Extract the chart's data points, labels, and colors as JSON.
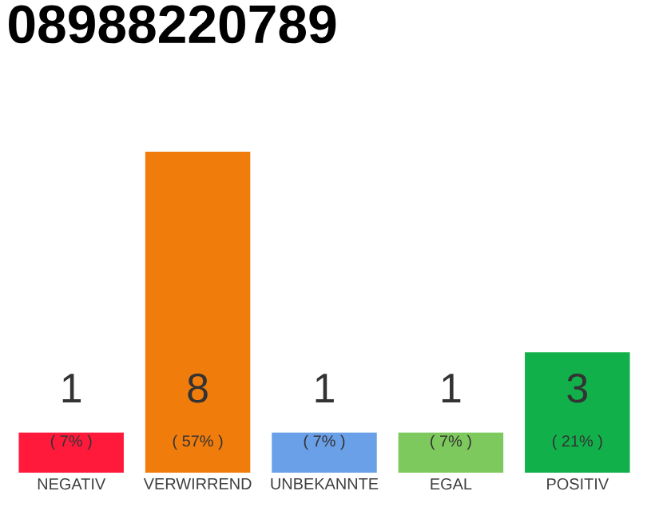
{
  "chart_data": {
    "type": "bar",
    "title": "08988220789",
    "categories": [
      "NEGATIV",
      "VERWIRREND",
      "UNBEKANNTE",
      "EGAL",
      "POSITIV"
    ],
    "values": [
      1,
      8,
      1,
      1,
      3
    ],
    "colors": [
      "#ff1a3c",
      "#f07c0c",
      "#6aa0e8",
      "#7dc95e",
      "#12b04a"
    ],
    "ylim": [
      0,
      8
    ],
    "data_labels": true,
    "tick_labels": "x",
    "grid": false,
    "annotations": [
      "( 7% )",
      "( 57% )",
      "( 7% )",
      "( 7% )",
      "( 21% )"
    ]
  }
}
